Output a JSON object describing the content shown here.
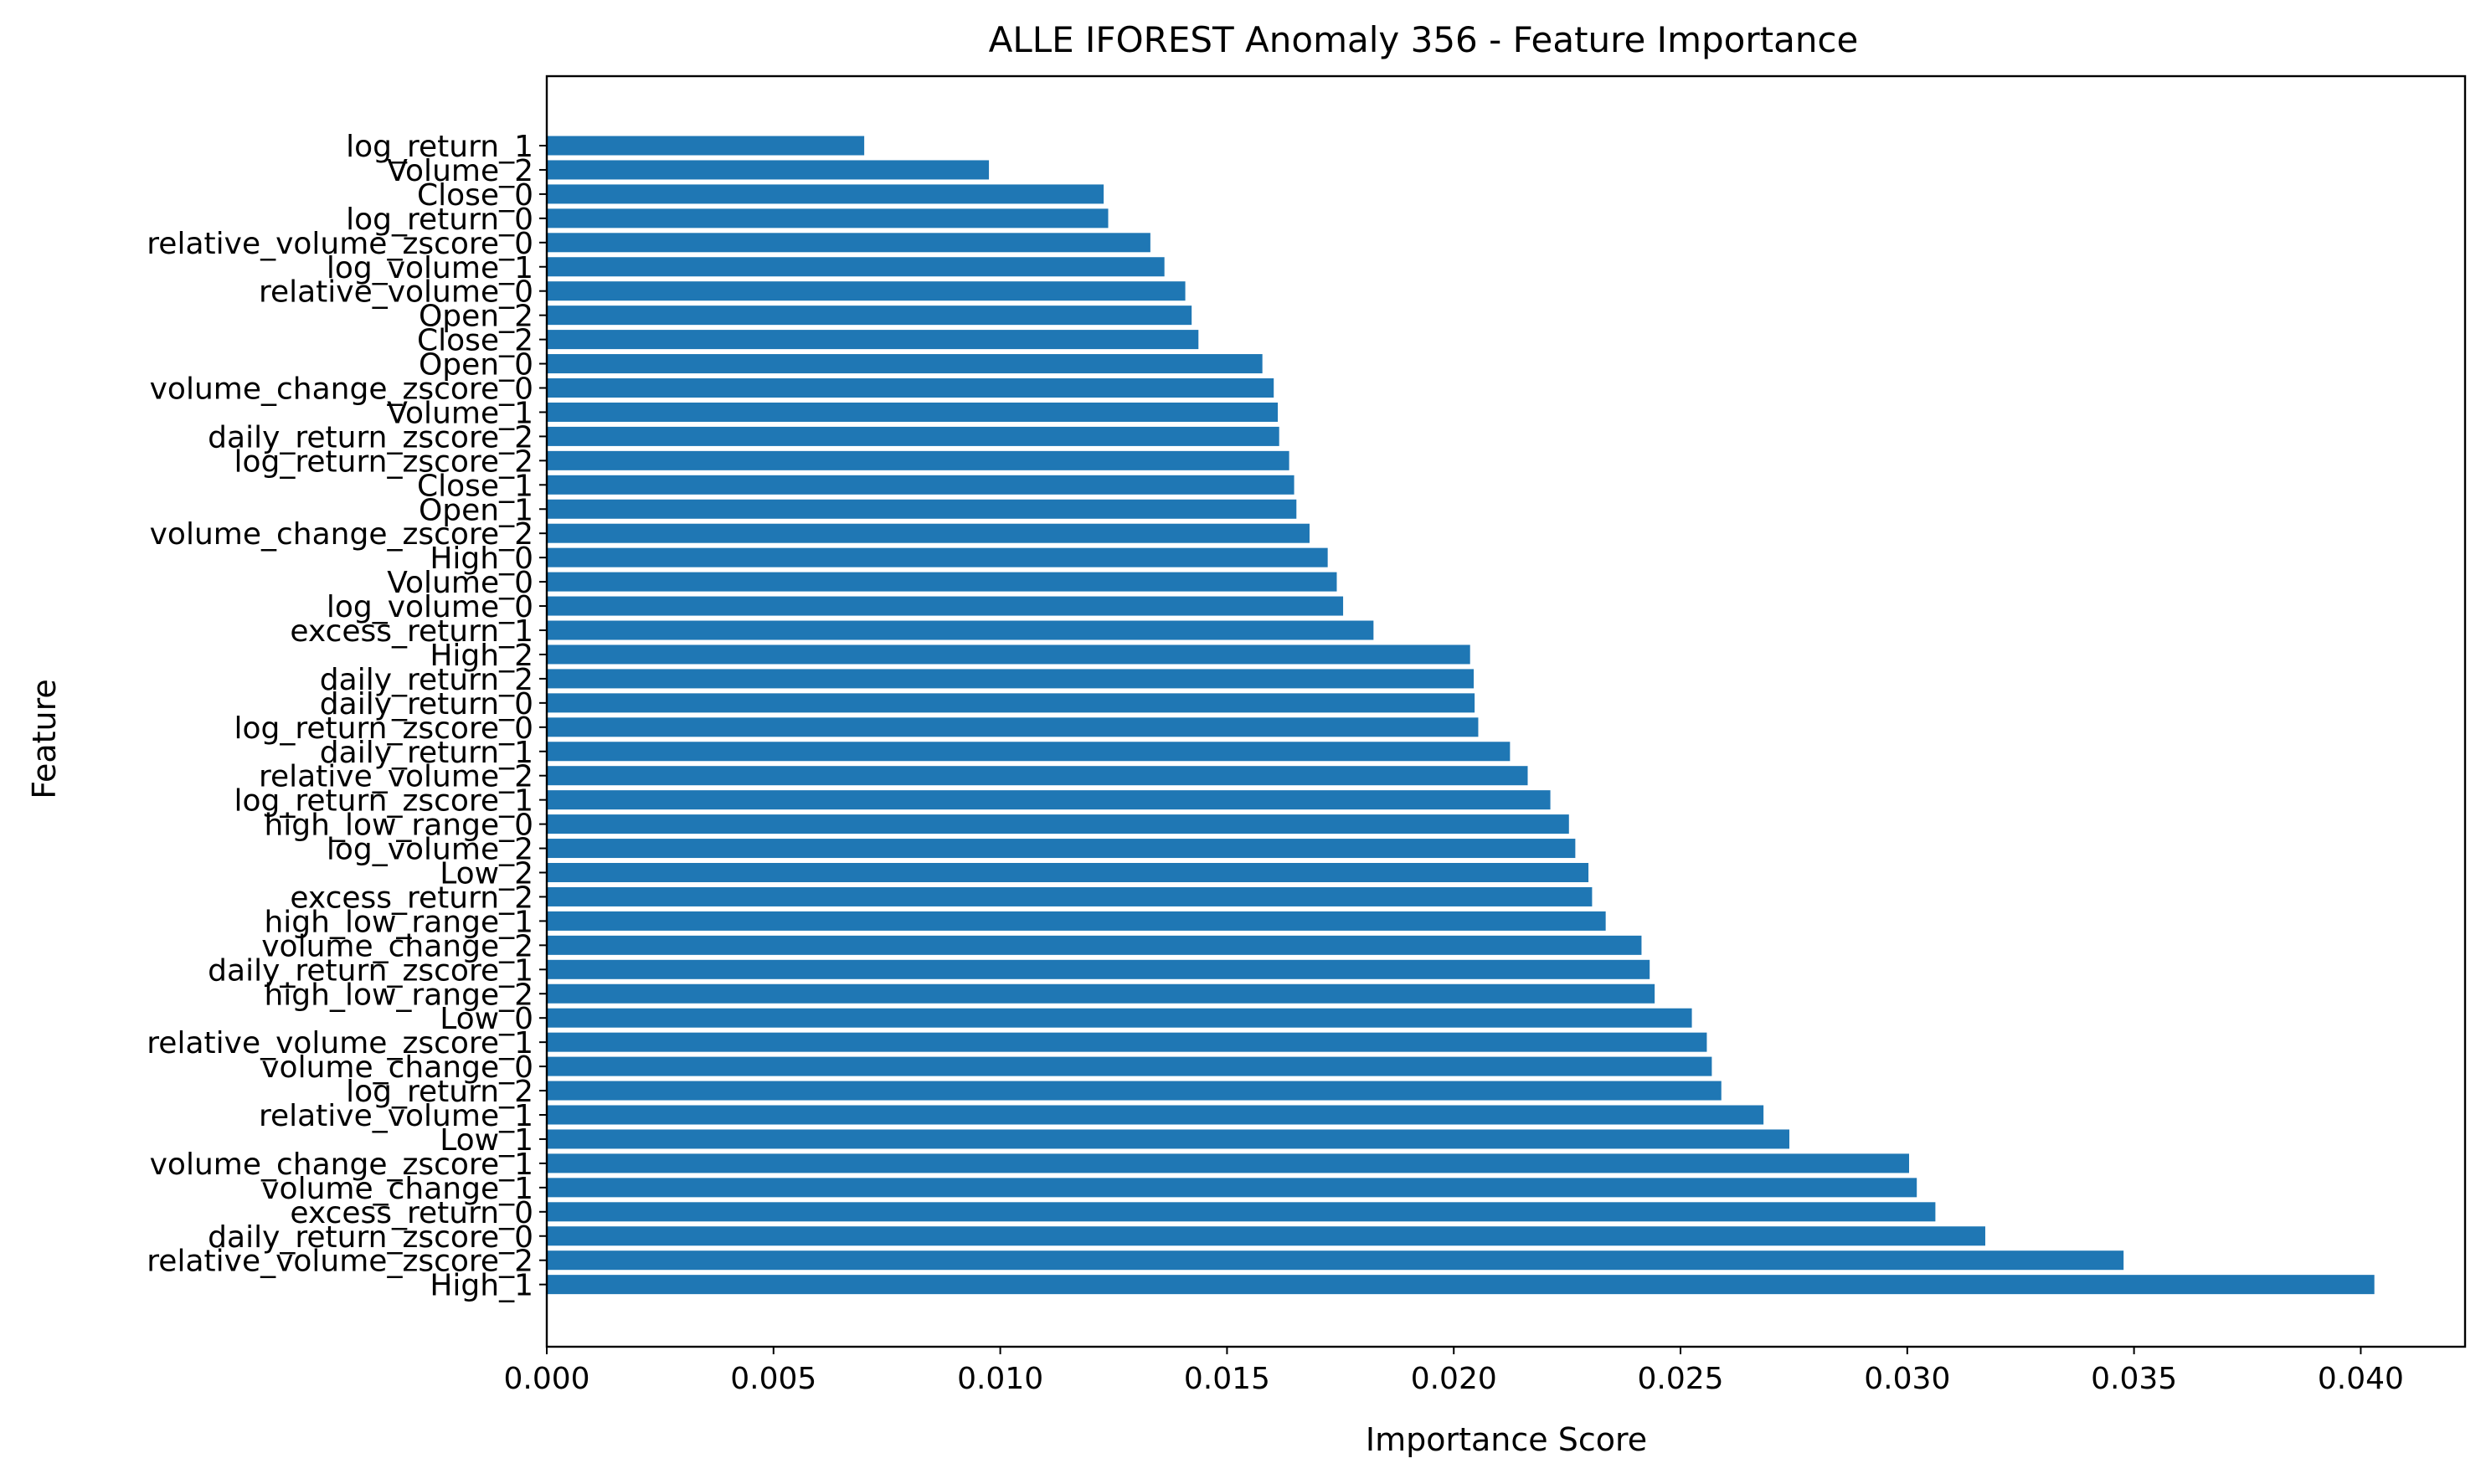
{
  "chart_data": {
    "type": "bar",
    "orientation": "horizontal",
    "title": "ALLE IFOREST Anomaly 356 - Feature Importance",
    "xlabel": "Importance Score",
    "ylabel": "Feature",
    "xlim": [
      0,
      0.0423
    ],
    "xticks": [
      "0.000",
      "0.005",
      "0.010",
      "0.015",
      "0.020",
      "0.025",
      "0.030",
      "0.035",
      "0.040"
    ],
    "xtick_values": [
      0,
      0.005,
      0.01,
      0.015,
      0.02,
      0.025,
      0.03,
      0.035,
      0.04
    ],
    "grid": false,
    "bar_color": "#1f77b4",
    "categories": [
      "log_return_1",
      "Volume_2",
      "Close_0",
      "log_return_0",
      "relative_volume_zscore_0",
      "log_volume_1",
      "relative_volume_0",
      "Open_2",
      "Close_2",
      "Open_0",
      "volume_change_zscore_0",
      "Volume_1",
      "daily_return_zscore_2",
      "log_return_zscore_2",
      "Close_1",
      "Open_1",
      "volume_change_zscore_2",
      "High_0",
      "Volume_0",
      "log_volume_0",
      "excess_return_1",
      "High_2",
      "daily_return_2",
      "daily_return_0",
      "log_return_zscore_0",
      "daily_return_1",
      "relative_volume_2",
      "log_return_zscore_1",
      "high_low_range_0",
      "log_volume_2",
      "Low_2",
      "excess_return_2",
      "high_low_range_1",
      "volume_change_2",
      "daily_return_zscore_1",
      "high_low_range_2",
      "Low_0",
      "relative_volume_zscore_1",
      "volume_change_0",
      "log_return_2",
      "relative_volume_1",
      "Low_1",
      "volume_change_zscore_1",
      "volume_change_1",
      "excess_return_0",
      "daily_return_zscore_0",
      "relative_volume_zscore_2",
      "High_1"
    ],
    "values": [
      0.007,
      0.00975,
      0.01228,
      0.01238,
      0.01331,
      0.01362,
      0.01408,
      0.01422,
      0.01437,
      0.01578,
      0.01603,
      0.01612,
      0.01615,
      0.01637,
      0.01648,
      0.01653,
      0.01682,
      0.01722,
      0.01742,
      0.01756,
      0.01823,
      0.02036,
      0.02044,
      0.02046,
      0.02054,
      0.02124,
      0.02163,
      0.02213,
      0.02254,
      0.02268,
      0.02297,
      0.02305,
      0.02335,
      0.02414,
      0.02432,
      0.02443,
      0.02525,
      0.02558,
      0.02569,
      0.0259,
      0.02683,
      0.0274,
      0.03004,
      0.03021,
      0.03062,
      0.03172,
      0.03477,
      0.0403
    ]
  }
}
